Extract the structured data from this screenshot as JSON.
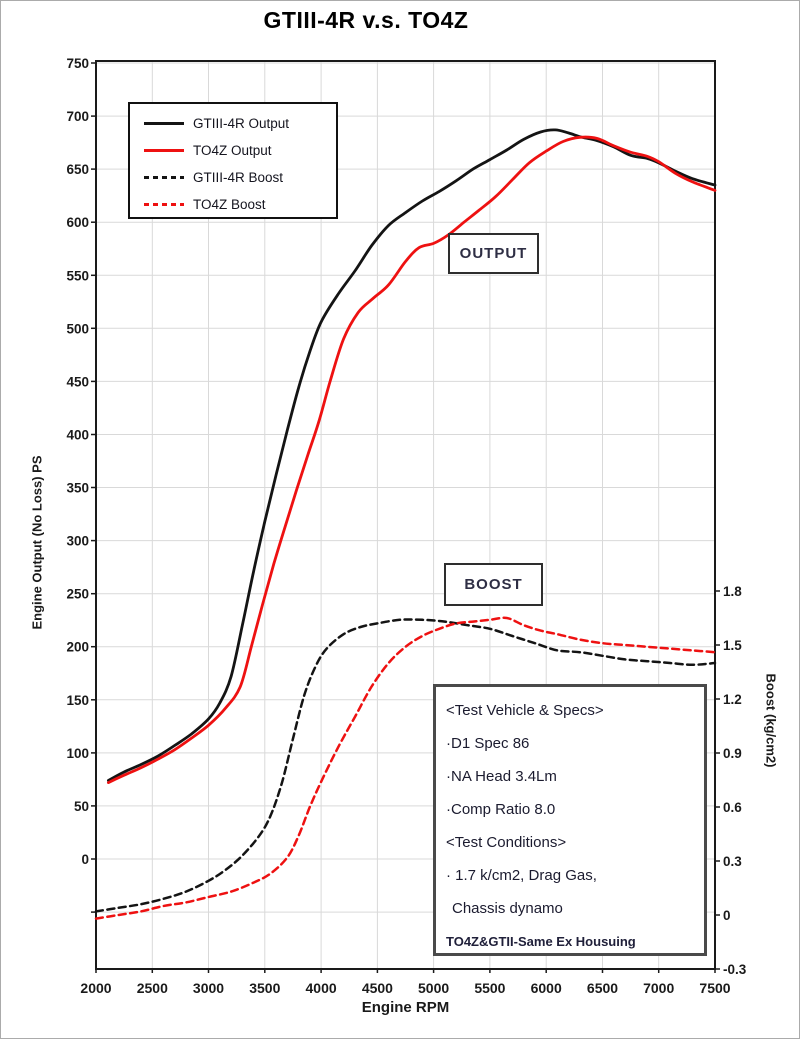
{
  "title": "GTIII-4R v.s. TO4Z",
  "annotations": {
    "output_label": "OUTPUT",
    "boost_label": "BOOST"
  },
  "spec_box": {
    "lines": [
      "<Test Vehicle & Specs>",
      "·D1 Spec 86",
      "·NA Head 3.4Lm",
      "·Comp Ratio 8.0",
      "<Test Conditions>",
      "· 1.7 k/cm2, Drag Gas,",
      "Chassis dynamo",
      "TO4Z&GTII-Same Ex Housuing"
    ]
  },
  "chart_data": {
    "type": "line",
    "title": "GTIII-4R v.s. TO4Z",
    "grid": true,
    "grid_color": "#d9d9d9",
    "axis_color": "#1a1a1a",
    "legend_position": "top-left",
    "xlabel": "Engine RPM",
    "xlim": [
      2000,
      7500
    ],
    "x_ticks": [
      2000,
      2500,
      3000,
      3500,
      4000,
      4500,
      5000,
      5500,
      6000,
      6500,
      7000,
      7500
    ],
    "ylabel_left": "Engine Output (No Loss) PS",
    "ylim_left": [
      -104,
      750
    ],
    "left_tick_step": 50,
    "left_label_ticks": [
      750,
      700,
      650,
      600,
      550,
      500,
      450,
      400,
      350,
      300,
      250,
      200,
      150,
      100,
      50,
      0
    ],
    "left_unlabeled_ticks": [
      -50
    ],
    "ylabel_right": "Boost (kg/cm2)",
    "ylim_right": [
      -0.3,
      1.8
    ],
    "right_ticks": [
      {
        "v": 1.8,
        "label": "1.8"
      },
      {
        "v": 1.5,
        "label": "1.5"
      },
      {
        "v": 1.2,
        "label": "1.2"
      },
      {
        "v": 0.9,
        "label": "0.9"
      },
      {
        "v": 0.6,
        "label": "0.6"
      },
      {
        "v": 0.3,
        "label": "0.3"
      },
      {
        "v": 0.0,
        "label": "0"
      },
      {
        "v": -0.3,
        "label": "-0.3"
      }
    ],
    "series": [
      {
        "name": "GTIII-4R Output",
        "color": "#141414",
        "style": "solid",
        "axis": "left",
        "points": [
          [
            2110,
            74
          ],
          [
            2250,
            82
          ],
          [
            2400,
            89
          ],
          [
            2550,
            97
          ],
          [
            2700,
            107
          ],
          [
            2850,
            118
          ],
          [
            3000,
            132
          ],
          [
            3100,
            147
          ],
          [
            3200,
            172
          ],
          [
            3300,
            220
          ],
          [
            3400,
            271
          ],
          [
            3500,
            318
          ],
          [
            3600,
            362
          ],
          [
            3700,
            404
          ],
          [
            3800,
            444
          ],
          [
            3900,
            478
          ],
          [
            4000,
            506
          ],
          [
            4150,
            532
          ],
          [
            4300,
            554
          ],
          [
            4450,
            578
          ],
          [
            4600,
            597
          ],
          [
            4750,
            609
          ],
          [
            4900,
            620
          ],
          [
            5050,
            629
          ],
          [
            5200,
            639
          ],
          [
            5350,
            650
          ],
          [
            5500,
            659
          ],
          [
            5650,
            668
          ],
          [
            5800,
            678
          ],
          [
            5950,
            685
          ],
          [
            6080,
            687
          ],
          [
            6200,
            684
          ],
          [
            6320,
            680
          ],
          [
            6450,
            677
          ],
          [
            6600,
            671
          ],
          [
            6750,
            663
          ],
          [
            6900,
            660
          ],
          [
            7000,
            656
          ],
          [
            7150,
            648
          ],
          [
            7300,
            641
          ],
          [
            7500,
            635
          ]
        ]
      },
      {
        "name": "TO4Z Output",
        "color": "#ee1111",
        "style": "solid",
        "axis": "left",
        "points": [
          [
            2110,
            72
          ],
          [
            2250,
            79
          ],
          [
            2400,
            86
          ],
          [
            2550,
            94
          ],
          [
            2700,
            103
          ],
          [
            2850,
            114
          ],
          [
            3000,
            126
          ],
          [
            3150,
            142
          ],
          [
            3280,
            162
          ],
          [
            3380,
            200
          ],
          [
            3480,
            240
          ],
          [
            3580,
            278
          ],
          [
            3680,
            313
          ],
          [
            3780,
            347
          ],
          [
            3880,
            380
          ],
          [
            3980,
            412
          ],
          [
            4080,
            450
          ],
          [
            4200,
            490
          ],
          [
            4330,
            515
          ],
          [
            4460,
            528
          ],
          [
            4600,
            541
          ],
          [
            4750,
            563
          ],
          [
            4870,
            576
          ],
          [
            5000,
            580
          ],
          [
            5130,
            588
          ],
          [
            5270,
            600
          ],
          [
            5400,
            611
          ],
          [
            5550,
            624
          ],
          [
            5700,
            640
          ],
          [
            5850,
            656
          ],
          [
            6000,
            667
          ],
          [
            6150,
            676
          ],
          [
            6300,
            680
          ],
          [
            6450,
            679
          ],
          [
            6600,
            672
          ],
          [
            6750,
            666
          ],
          [
            6900,
            662
          ],
          [
            7000,
            657
          ],
          [
            7150,
            646
          ],
          [
            7300,
            638
          ],
          [
            7500,
            630
          ]
        ]
      },
      {
        "name": "GTIII-4R Boost",
        "color": "#141414",
        "style": "dashed",
        "axis": "right",
        "points": [
          [
            2000,
            0.02
          ],
          [
            2200,
            0.04
          ],
          [
            2400,
            0.06
          ],
          [
            2600,
            0.09
          ],
          [
            2800,
            0.13
          ],
          [
            3000,
            0.19
          ],
          [
            3150,
            0.25
          ],
          [
            3300,
            0.33
          ],
          [
            3450,
            0.44
          ],
          [
            3550,
            0.55
          ],
          [
            3650,
            0.73
          ],
          [
            3750,
            0.98
          ],
          [
            3850,
            1.22
          ],
          [
            3950,
            1.38
          ],
          [
            4050,
            1.48
          ],
          [
            4200,
            1.56
          ],
          [
            4350,
            1.6
          ],
          [
            4500,
            1.62
          ],
          [
            4700,
            1.64
          ],
          [
            4900,
            1.64
          ],
          [
            5100,
            1.63
          ],
          [
            5300,
            1.61
          ],
          [
            5500,
            1.59
          ],
          [
            5700,
            1.55
          ],
          [
            5900,
            1.51
          ],
          [
            6100,
            1.47
          ],
          [
            6300,
            1.46
          ],
          [
            6500,
            1.44
          ],
          [
            6700,
            1.42
          ],
          [
            6900,
            1.41
          ],
          [
            7100,
            1.4
          ],
          [
            7300,
            1.39
          ],
          [
            7500,
            1.4
          ]
        ]
      },
      {
        "name": "TO4Z Boost",
        "color": "#ee1111",
        "style": "dashed",
        "axis": "right",
        "points": [
          [
            2000,
            -0.02
          ],
          [
            2200,
            0.0
          ],
          [
            2400,
            0.02
          ],
          [
            2600,
            0.05
          ],
          [
            2800,
            0.07
          ],
          [
            3000,
            0.1
          ],
          [
            3200,
            0.13
          ],
          [
            3400,
            0.18
          ],
          [
            3550,
            0.23
          ],
          [
            3700,
            0.32
          ],
          [
            3800,
            0.44
          ],
          [
            3900,
            0.6
          ],
          [
            4000,
            0.74
          ],
          [
            4150,
            0.93
          ],
          [
            4300,
            1.1
          ],
          [
            4450,
            1.27
          ],
          [
            4600,
            1.4
          ],
          [
            4750,
            1.49
          ],
          [
            4900,
            1.55
          ],
          [
            5050,
            1.59
          ],
          [
            5200,
            1.62
          ],
          [
            5350,
            1.63
          ],
          [
            5500,
            1.64
          ],
          [
            5650,
            1.65
          ],
          [
            5800,
            1.61
          ],
          [
            5950,
            1.58
          ],
          [
            6100,
            1.56
          ],
          [
            6300,
            1.53
          ],
          [
            6500,
            1.51
          ],
          [
            6700,
            1.5
          ],
          [
            6900,
            1.49
          ],
          [
            7100,
            1.48
          ],
          [
            7300,
            1.47
          ],
          [
            7500,
            1.46
          ]
        ]
      }
    ]
  }
}
